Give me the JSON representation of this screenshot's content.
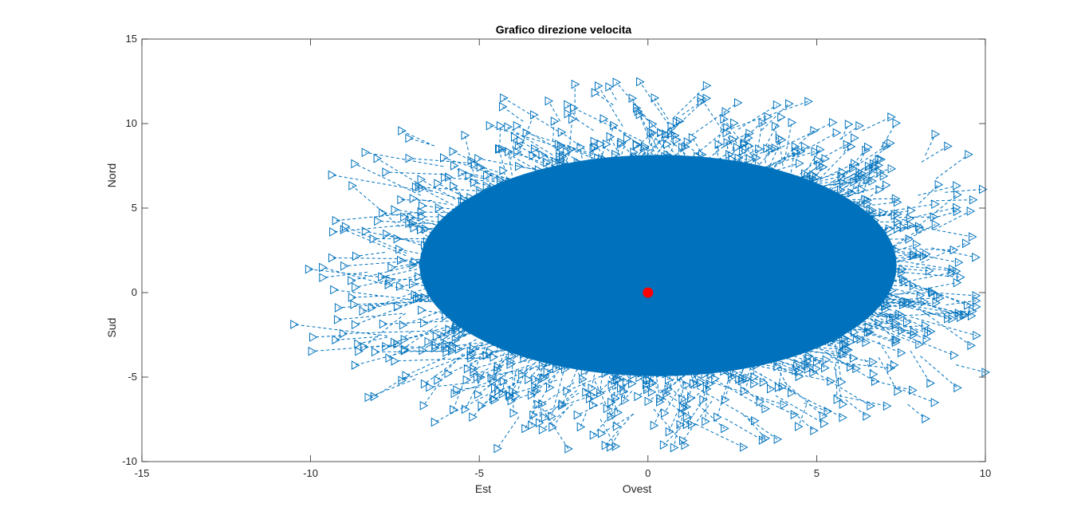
{
  "chart_data": {
    "type": "quiver",
    "title": "Grafico direzione velocita",
    "x_labels": [
      "Est",
      "Ovest"
    ],
    "y_labels": [
      "Nord",
      "Sud"
    ],
    "xlim": [
      -15,
      10
    ],
    "ylim": [
      -10,
      15
    ],
    "xticks": [
      -15,
      -10,
      -5,
      0,
      5,
      10
    ],
    "yticks": [
      -10,
      -5,
      0,
      5,
      10,
      15
    ],
    "grid": false,
    "box": true,
    "series": [
      {
        "style": "dashed line with right-pointing triangle markers",
        "color": "#0072BD",
        "extent": {
          "x_min": -10.9,
          "x_max": 10.0,
          "y_min": -9.3,
          "y_max": 13.1
        },
        "center": [
          0.5,
          1.2
        ]
      }
    ],
    "origin_marker": {
      "x": 0,
      "y": 0,
      "color": "#FF0000",
      "style": "filled circle"
    }
  }
}
